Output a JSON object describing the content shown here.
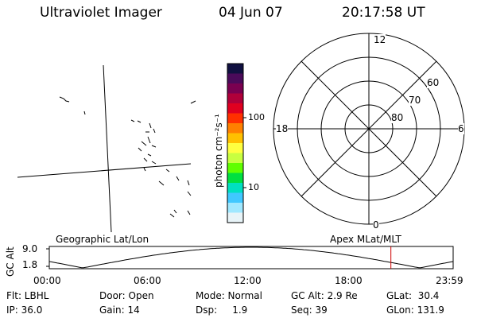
{
  "header": {
    "instrument": "Ultraviolet Imager",
    "date": "04 Jun 07",
    "time": "20:17:58 UT"
  },
  "colorbar": {
    "unit_label": "photon cm⁻²s⁻¹",
    "ticks": [
      "100",
      "10"
    ],
    "colors": [
      "#101040",
      "#4a0a5a",
      "#7a0050",
      "#b0003a",
      "#e00020",
      "#ff3000",
      "#ff8000",
      "#ffc000",
      "#ffff40",
      "#c8ff40",
      "#60ff00",
      "#00e040",
      "#00e0c0",
      "#40c8ff",
      "#a0e8ff",
      "#e8f4f8"
    ]
  },
  "polar": {
    "hour_labels": {
      "top": "12",
      "bottom": "0",
      "left": "18",
      "right": "6"
    },
    "lat_labels": [
      "60",
      "70",
      "80"
    ]
  },
  "altitude_strip": {
    "left_title": "Geographic Lat/Lon",
    "right_title": "Apex MLat/MLT",
    "y_axis_title": "GC Alt",
    "y_ticks": [
      "9.0",
      "1.8"
    ],
    "x_ticks": [
      "00:00",
      "06:00",
      "12:00",
      "18:00",
      "23:59"
    ],
    "current_time_marker_hour": 20.3,
    "marker_color": "#cc0000"
  },
  "info": {
    "filter": "Flt: LBHL",
    "ip": "IP: 36.0",
    "door": "Door: Open",
    "gain": "Gain: 14",
    "mode": "Mode: Normal",
    "dsp": "Dsp:     1.9",
    "gc_alt": "GC Alt: 2.9 Re",
    "seq": "Seq: 39",
    "glat": "GLat:  30.4",
    "glon": "GLon: 131.9"
  }
}
